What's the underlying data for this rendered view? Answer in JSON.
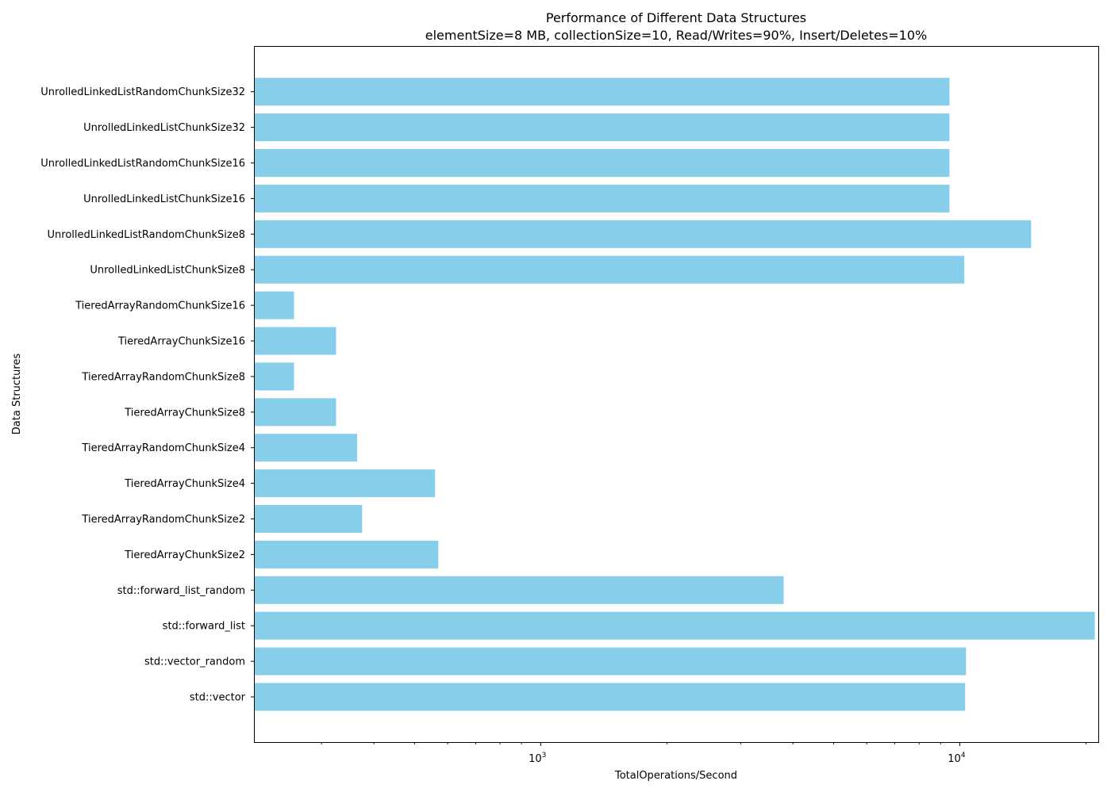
{
  "chart_data": {
    "type": "bar",
    "orientation": "horizontal",
    "title": "Performance of Different Data Structures",
    "subtitle": "elementSize=8 MB, collectionSize=10, Read/Writes=90%, Insert/Deletes=10%",
    "xlabel": "TotalOperations/Second",
    "ylabel": "Data Structures",
    "xscale": "log",
    "xlim": [
      207,
      21500
    ],
    "grid": false,
    "bar_color": "#87ceeb",
    "x_tick_labels": [
      {
        "base": "10",
        "exp": "3",
        "value": 1000
      },
      {
        "base": "10",
        "exp": "4",
        "value": 10000
      }
    ],
    "categories": [
      "std::vector",
      "std::vector_random",
      "std::forward_list",
      "std::forward_list_random",
      "TieredArrayChunkSize2",
      "TieredArrayRandomChunkSize2",
      "TieredArrayChunkSize4",
      "TieredArrayRandomChunkSize4",
      "TieredArrayChunkSize8",
      "TieredArrayRandomChunkSize8",
      "TieredArrayChunkSize16",
      "TieredArrayRandomChunkSize16",
      "UnrolledLinkedListChunkSize8",
      "UnrolledLinkedListRandomChunkSize8",
      "UnrolledLinkedListChunkSize16",
      "UnrolledLinkedListRandomChunkSize16",
      "UnrolledLinkedListChunkSize32",
      "UnrolledLinkedListRandomChunkSize32"
    ],
    "values": [
      10300,
      10350,
      21000,
      3800,
      570,
      375,
      560,
      365,
      325,
      258,
      325,
      258,
      10250,
      14800,
      9450,
      9450,
      9450,
      9450
    ]
  }
}
